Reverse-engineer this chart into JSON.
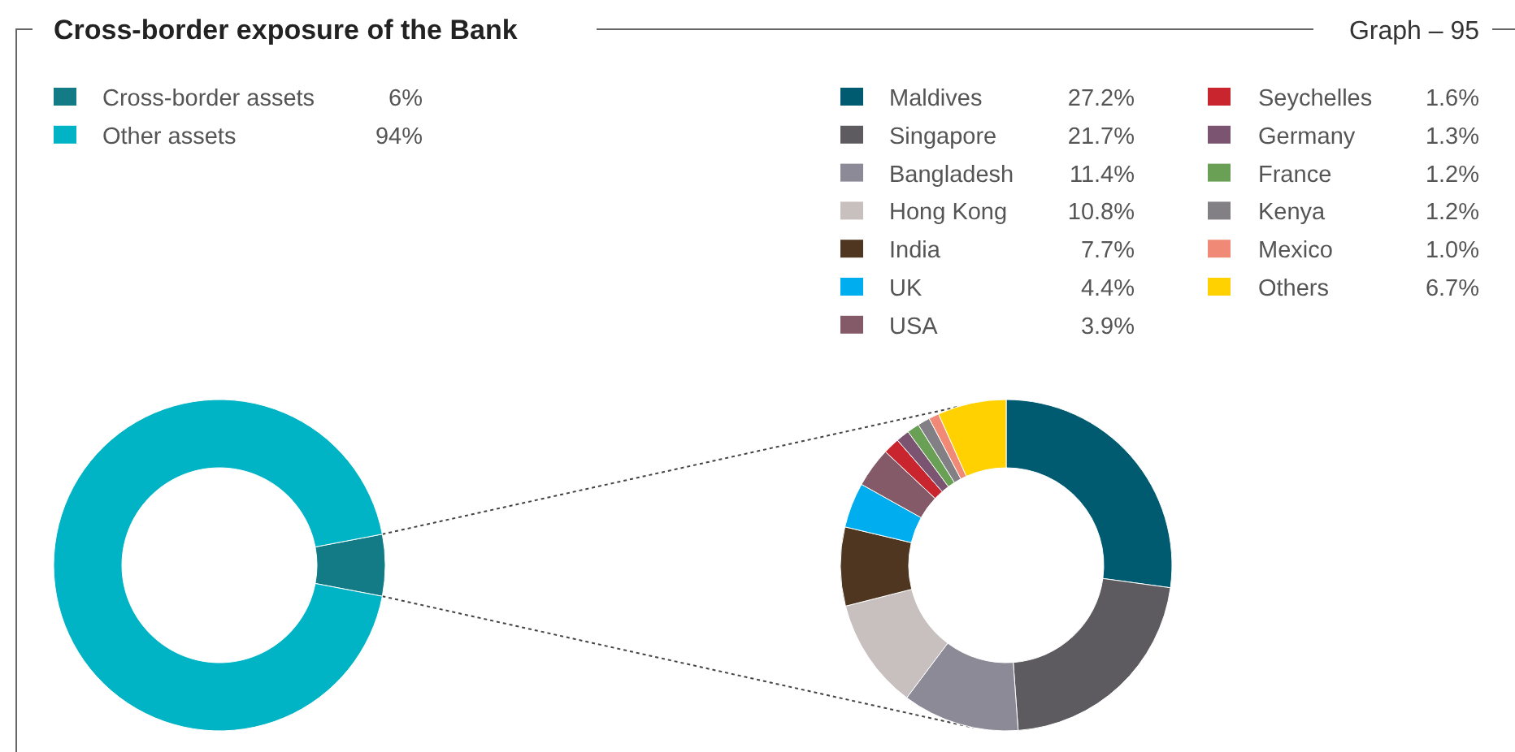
{
  "chart_data": [
    {
      "type": "donut",
      "title": "Cross-border exposure of the Bank",
      "annotations": [
        "Graph – 95"
      ],
      "categories": [
        "Cross-border assets",
        "Other assets"
      ],
      "values": [
        6,
        94
      ],
      "colors": [
        "#127b85",
        "#00b3c5"
      ],
      "value_labels": [
        "6%",
        "94%"
      ],
      "legend": "top"
    },
    {
      "type": "donut",
      "categories": [
        "Maldives",
        "Singapore",
        "Bangladesh",
        "Hong Kong",
        "India",
        "UK",
        "USA",
        "Seychelles",
        "Germany",
        "France",
        "Kenya",
        "Mexico",
        "Others"
      ],
      "values": [
        27.2,
        21.7,
        11.4,
        10.8,
        7.7,
        4.4,
        3.9,
        1.6,
        1.3,
        1.2,
        1.2,
        1.0,
        6.7
      ],
      "colors": [
        "#005a70",
        "#5d5b60",
        "#8b8a96",
        "#c8bfbf",
        "#4f3620",
        "#00aeef",
        "#845a69",
        "#c9252f",
        "#7a5470",
        "#69a055",
        "#828085",
        "#f08a76",
        "#ffd100"
      ],
      "value_labels": [
        "27.2%",
        "21.7%",
        "11.4%",
        "10.8%",
        "7.7%",
        "4.4%",
        "3.9%",
        "1.6%",
        "1.3%",
        "1.2%",
        "1.2%",
        "1.0%",
        "6.7%"
      ],
      "legend": "top"
    }
  ]
}
